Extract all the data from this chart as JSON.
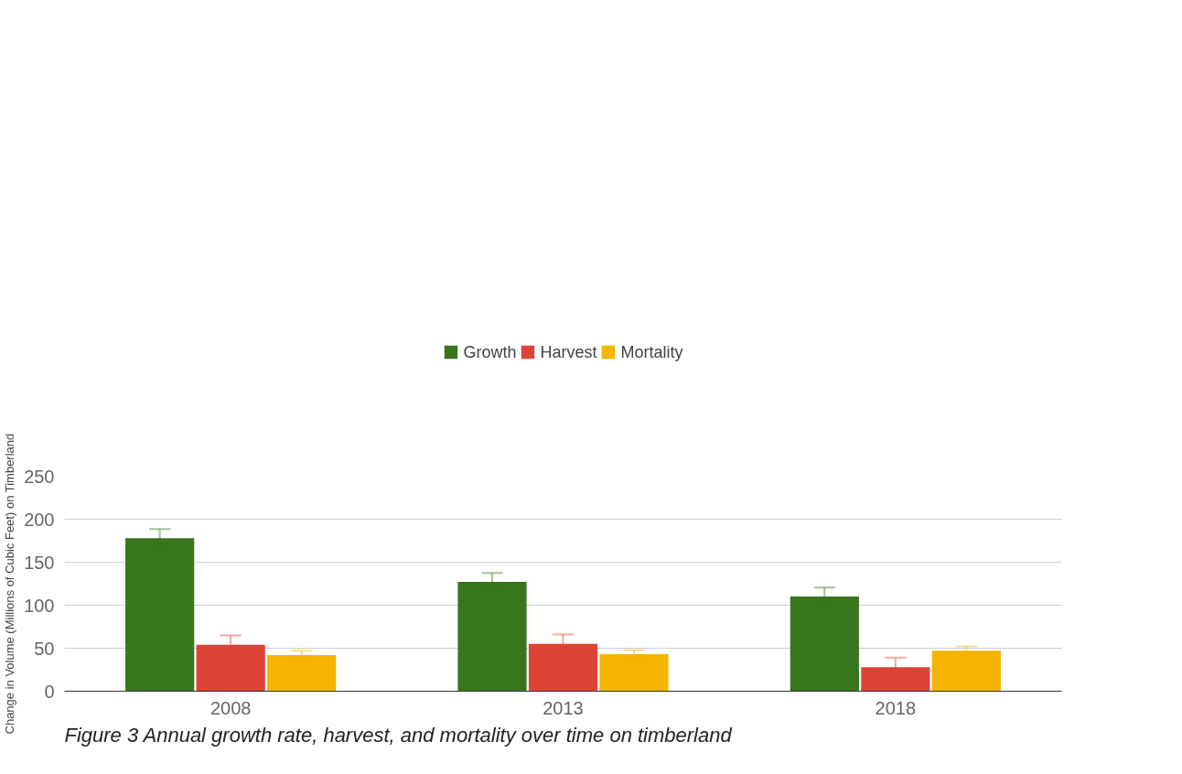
{
  "chart_data": {
    "type": "bar",
    "categories": [
      "2008",
      "2013",
      "2018"
    ],
    "series": [
      {
        "name": "Growth",
        "color": "#38761d",
        "values": [
          178,
          127,
          110
        ],
        "errors": [
          10.5,
          10.5,
          10.5
        ]
      },
      {
        "name": "Harvest",
        "color": "#dd4438",
        "values": [
          54,
          55,
          28
        ],
        "errors": [
          11,
          11,
          11
        ]
      },
      {
        "name": "Mortality",
        "color": "#f4b400",
        "values": [
          42,
          43,
          47
        ],
        "errors": [
          5,
          5,
          5
        ]
      }
    ],
    "ylabel": "Change in Volume (Millions of Cubic Feet) on Timberland",
    "ylim": [
      0,
      250
    ],
    "yticks": [
      0,
      50,
      100,
      150,
      200,
      250
    ],
    "grid": "y",
    "legend": "top",
    "annotations": [
      "Figure 3 Annual growth rate, harvest, and mortality over time on timberland"
    ]
  }
}
